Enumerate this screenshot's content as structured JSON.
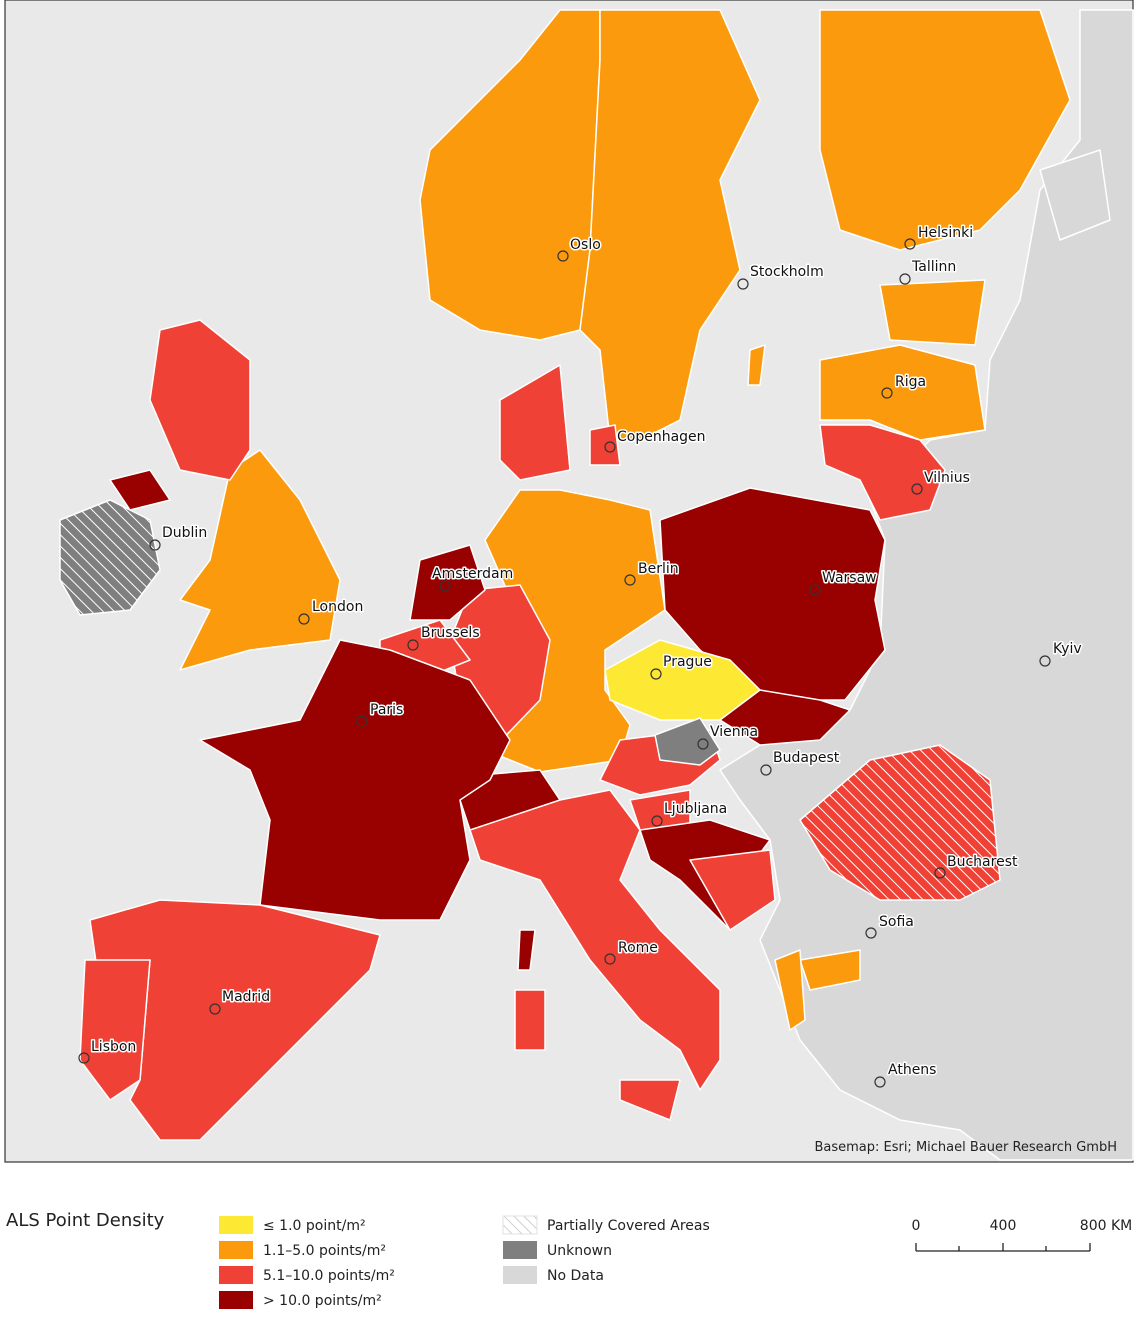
{
  "map": {
    "attribution": "Basemap: Esri; Michael Bauer Research GmbH",
    "cities": [
      {
        "label": "Oslo"
      },
      {
        "label": "Stockholm"
      },
      {
        "label": "Helsinki"
      },
      {
        "label": "Tallinn"
      },
      {
        "label": "Riga"
      },
      {
        "label": "Copenhagen"
      },
      {
        "label": "Vilnius"
      },
      {
        "label": "Dublin"
      },
      {
        "label": "Amsterdam"
      },
      {
        "label": "Berlin"
      },
      {
        "label": "Warsaw"
      },
      {
        "label": "London"
      },
      {
        "label": "Brussels"
      },
      {
        "label": "Kyiv"
      },
      {
        "label": "Prague"
      },
      {
        "label": "Paris"
      },
      {
        "label": "Vienna"
      },
      {
        "label": "Budapest"
      },
      {
        "label": "Ljubljana"
      },
      {
        "label": "Bucharest"
      },
      {
        "label": "Sofia"
      },
      {
        "label": "Rome"
      },
      {
        "label": "Madrid"
      },
      {
        "label": "Lisbon"
      },
      {
        "label": "Athens"
      }
    ]
  },
  "legend": {
    "title": "ALS Point Density",
    "classes": [
      {
        "label": "≤ 1.0 point/m²",
        "color": "#fde933"
      },
      {
        "label": "1.1–5.0 points/m²",
        "color": "#fb9a0c"
      },
      {
        "label": "5.1–10.0 points/m²",
        "color": "#ef4136"
      },
      {
        "label": "> 10.0 points/m²",
        "color": "#990000"
      }
    ],
    "other": [
      {
        "label": "Partially Covered Areas"
      },
      {
        "label": "Unknown",
        "color": "#7f7f7f"
      },
      {
        "label": "No Data",
        "color": "#d8d8d8"
      }
    ]
  },
  "scale_bar": {
    "labels": [
      "0",
      "400",
      "800 KM"
    ]
  }
}
